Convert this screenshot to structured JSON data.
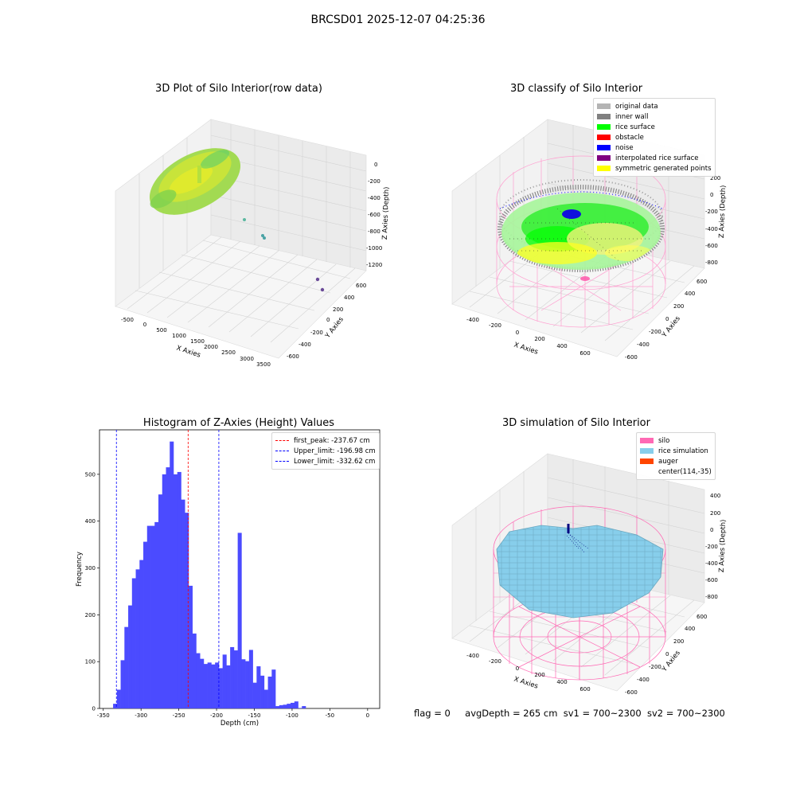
{
  "suptitle": "BRCSD01 2025-12-07 04:25:36",
  "panels": {
    "raw": {
      "title": "3D Plot of Silo Interior(row data)",
      "xlabel": "X Axies",
      "ylabel": "Y Axies",
      "zlabel": "Z Axies (Depth)",
      "xticks": [
        "-500",
        "0",
        "500",
        "1000",
        "1500",
        "2000",
        "2500",
        "3000",
        "3500"
      ],
      "yticks": [
        "600",
        "400",
        "200",
        "0",
        "-200",
        "-400",
        "-600"
      ],
      "zticks": [
        "0",
        "-200",
        "-400",
        "-600",
        "-800",
        "-1000",
        "-1200"
      ]
    },
    "classify": {
      "title": "3D classify of Silo Interior",
      "xlabel": "X Axies",
      "ylabel": "Y Axies",
      "zlabel": "Z Axies (Depth)",
      "xticks": [
        "-400",
        "-200",
        "0",
        "200",
        "400",
        "600"
      ],
      "yticks": [
        "600",
        "400",
        "200",
        "0",
        "-200",
        "-400",
        "-600"
      ],
      "zticks": [
        "200",
        "0",
        "-200",
        "-400",
        "-600",
        "-800"
      ],
      "legend": [
        {
          "label": "original data",
          "color": "#b4b4b4"
        },
        {
          "label": "inner wall",
          "color": "#808080"
        },
        {
          "label": "rice surface",
          "color": "#00ff00"
        },
        {
          "label": "obstacle",
          "color": "#ff0000"
        },
        {
          "label": "noise",
          "color": "#0000ff"
        },
        {
          "label": "interpolated rice surface",
          "color": "#800080"
        },
        {
          "label": "symmetric generated points",
          "color": "#ffff00"
        }
      ]
    },
    "simulation": {
      "title": "3D simulation of Silo Interior",
      "xlabel": "X Axies",
      "ylabel": "Y Axies",
      "zlabel": "Z Axies (Depth)",
      "xticks": [
        "-400",
        "-200",
        "0",
        "200",
        "400",
        "600"
      ],
      "yticks": [
        "600",
        "400",
        "200",
        "0",
        "-200",
        "-400",
        "-600"
      ],
      "zticks": [
        "400",
        "200",
        "0",
        "-200",
        "-400",
        "-600",
        "-800"
      ],
      "legend": [
        {
          "label": "silo",
          "color": "#ff69b4"
        },
        {
          "label": "rice simulation",
          "color": "#87ceeb"
        },
        {
          "label": "auger",
          "color": "#ff4500"
        },
        {
          "label": "center(114,-35)",
          "color": ""
        }
      ]
    }
  },
  "chart_data": [
    {
      "type": "bar",
      "title": "Histogram of Z-Axies (Height) Values",
      "xlabel": "Depth (cm)",
      "ylabel": "Frequency",
      "bar_color": "#4b4bff",
      "bin_start": -337,
      "bin_width": 5,
      "values": [
        10,
        40,
        103,
        174,
        220,
        278,
        297,
        317,
        356,
        390,
        390,
        398,
        457,
        500,
        515,
        570,
        500,
        505,
        446,
        418,
        262,
        160,
        118,
        106,
        95,
        98,
        94,
        98,
        86,
        115,
        92,
        131,
        124,
        375,
        105,
        101,
        125,
        55,
        90,
        70,
        40,
        68,
        83,
        5,
        7,
        8,
        10,
        12,
        15,
        1,
        5
      ],
      "xlim": [
        -355,
        16
      ],
      "ylim": [
        0,
        595
      ],
      "xticks": [
        -350,
        -300,
        -250,
        -200,
        -150,
        -100,
        -50,
        0
      ],
      "yticks": [
        0,
        100,
        200,
        300,
        400,
        500
      ],
      "vlines": [
        {
          "label": "first_peak: -237.67 cm",
          "x": -237.67,
          "color": "#ff0000"
        },
        {
          "label": "Upper_limit: -196.98 cm",
          "x": -196.98,
          "color": "#0000ff"
        },
        {
          "label": "Lower_limit: -332.62 cm",
          "x": -332.62,
          "color": "#0000ff"
        }
      ],
      "legend_position": "top-right"
    }
  ],
  "footer": {
    "flag": "flag = 0",
    "avg_depth": "avgDepth = 265 cm",
    "sv1": "sv1 = 700~2300",
    "sv2": "sv2 = 700~2300"
  }
}
